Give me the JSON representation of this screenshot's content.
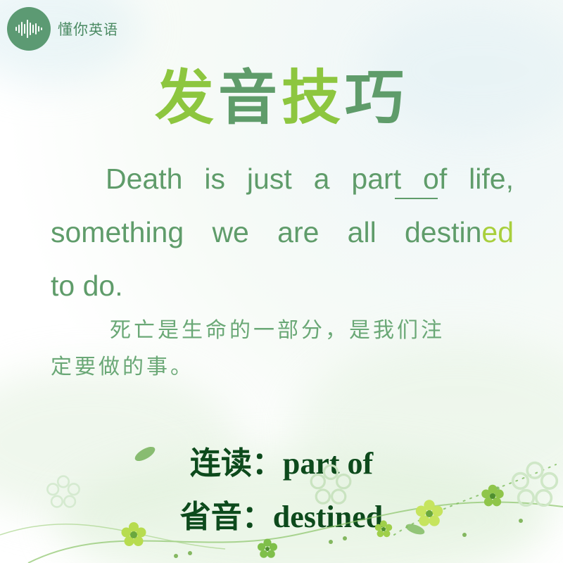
{
  "logo": {
    "brand_cn": "懂你",
    "brand_en": "英语",
    "icon": "sound-wave-icon"
  },
  "title": {
    "part1": "发",
    "part2": "音",
    "part3": "技",
    "part4": "巧"
  },
  "sentence": {
    "line1_a": "Death is just a par",
    "line1_b": "t o",
    "line1_c": "f life,",
    "line2_a": "something we are all destin",
    "line2_b": "ed",
    "line3": "to do."
  },
  "translation": {
    "line1": "死亡是生命的一部分，是我们注",
    "line2": "定要做的事。"
  },
  "tips": {
    "linking_label": "连读：",
    "linking_value": "part of",
    "elision_label": "省音：",
    "elision_value": "destined"
  },
  "colors": {
    "logo_green": "#5c9a73",
    "title_light": "#8dc63f",
    "title_dark": "#5f9c6a",
    "text_green": "#5f9c6a",
    "highlight": "#a8cf3c",
    "label_dark": "#0d4a1c"
  }
}
